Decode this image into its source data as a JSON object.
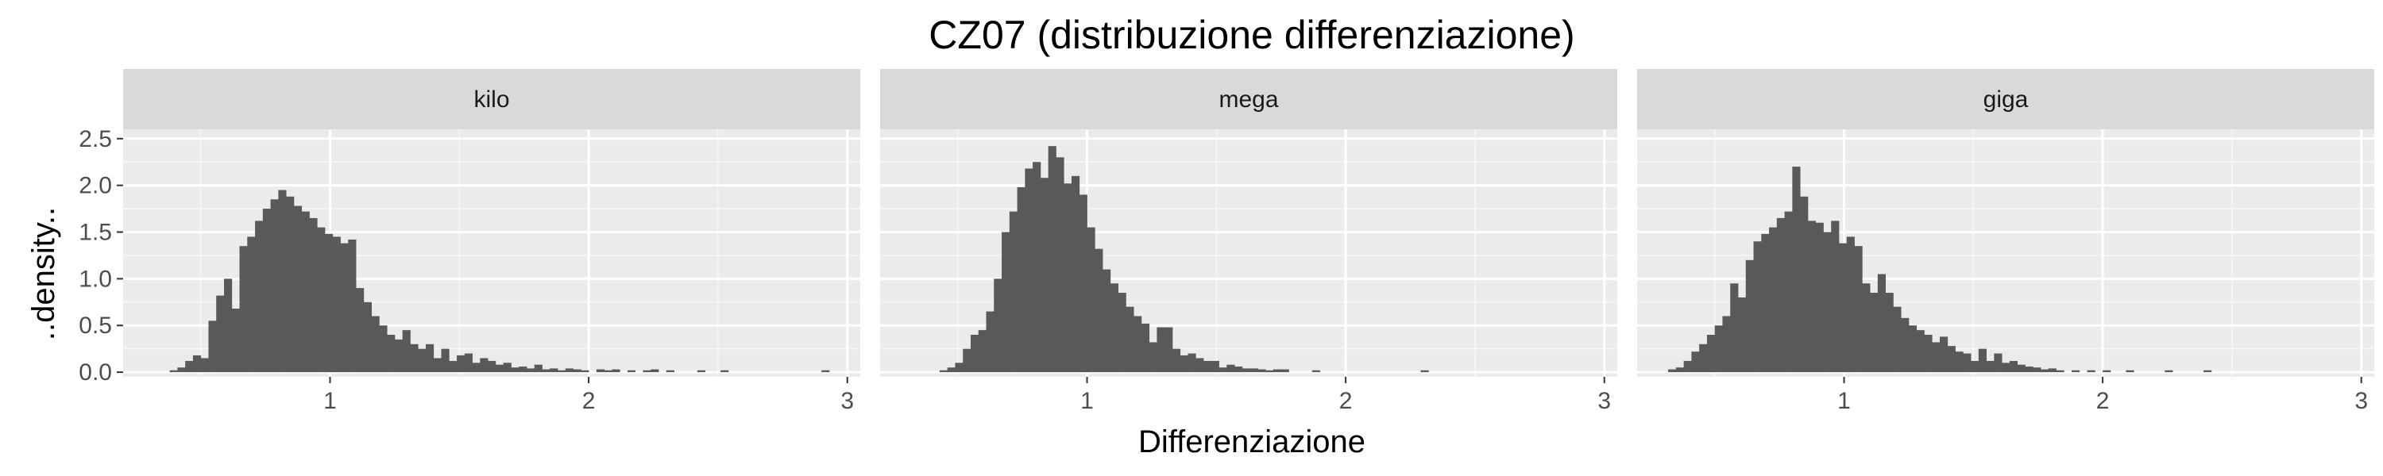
{
  "chart_data": {
    "type": "bar",
    "title": "CZ07 (distribuzione differenziazione)",
    "xlabel": "Differenziazione",
    "ylabel": "..density..",
    "xlim": [
      0.2,
      3.05
    ],
    "ylim": [
      -0.05,
      2.6
    ],
    "x_ticks": [
      1,
      2,
      3
    ],
    "y_ticks": [
      0.0,
      0.5,
      1.0,
      1.5,
      2.0,
      2.5
    ],
    "x_tick_labels": [
      "1",
      "2",
      "3"
    ],
    "y_tick_labels": [
      "0.0",
      "0.5",
      "1.0",
      "1.5",
      "2.0",
      "2.5"
    ],
    "grid": true,
    "bar_color": "#595959",
    "panel_background": "#ebebeb",
    "strip_background": "#d9d9d9",
    "bin_width": 0.03,
    "panels": [
      {
        "name": "kilo",
        "bin_starts": [
          0.38,
          0.41,
          0.44,
          0.47,
          0.5,
          0.53,
          0.56,
          0.59,
          0.62,
          0.65,
          0.68,
          0.71,
          0.74,
          0.77,
          0.8,
          0.83,
          0.86,
          0.89,
          0.92,
          0.95,
          0.98,
          1.01,
          1.04,
          1.07,
          1.1,
          1.13,
          1.16,
          1.19,
          1.22,
          1.25,
          1.28,
          1.31,
          1.34,
          1.37,
          1.4,
          1.43,
          1.46,
          1.49,
          1.52,
          1.55,
          1.58,
          1.61,
          1.64,
          1.67,
          1.7,
          1.73,
          1.76,
          1.79,
          1.82,
          1.85,
          1.88,
          1.91,
          1.94,
          1.97,
          2.0,
          2.03,
          2.06,
          2.09,
          2.12,
          2.15,
          2.18,
          2.21,
          2.24,
          2.27,
          2.3,
          2.33,
          2.36,
          2.39,
          2.42,
          2.45,
          2.48,
          2.51,
          2.54,
          2.57,
          2.6,
          2.63,
          2.66,
          2.69,
          2.72,
          2.75,
          2.78,
          2.81,
          2.84,
          2.87,
          2.9
        ],
        "values": [
          0.02,
          0.05,
          0.12,
          0.18,
          0.15,
          0.55,
          0.82,
          1.0,
          0.68,
          1.35,
          1.45,
          1.62,
          1.75,
          1.85,
          1.95,
          1.88,
          1.78,
          1.72,
          1.65,
          1.55,
          1.48,
          1.45,
          1.38,
          1.42,
          0.9,
          0.75,
          0.6,
          0.5,
          0.4,
          0.35,
          0.45,
          0.3,
          0.25,
          0.3,
          0.15,
          0.25,
          0.12,
          0.18,
          0.2,
          0.1,
          0.15,
          0.12,
          0.08,
          0.1,
          0.05,
          0.06,
          0.04,
          0.08,
          0.03,
          0.04,
          0.02,
          0.04,
          0.03,
          0.02,
          0.0,
          0.03,
          0.02,
          0.03,
          0.0,
          0.02,
          0.0,
          0.02,
          0.03,
          0.0,
          0.02,
          0.0,
          0.0,
          0.0,
          0.02,
          0.0,
          0.0,
          0.02,
          0.0,
          0.0,
          0.0,
          0.0,
          0.0,
          0.0,
          0.0,
          0.0,
          0.0,
          0.0,
          0.0,
          0.0,
          0.02
        ]
      },
      {
        "name": "mega",
        "bin_starts": [
          0.43,
          0.46,
          0.49,
          0.52,
          0.55,
          0.58,
          0.61,
          0.64,
          0.67,
          0.7,
          0.73,
          0.76,
          0.79,
          0.82,
          0.85,
          0.88,
          0.91,
          0.94,
          0.97,
          1.0,
          1.03,
          1.06,
          1.09,
          1.12,
          1.15,
          1.18,
          1.21,
          1.24,
          1.27,
          1.3,
          1.33,
          1.36,
          1.39,
          1.42,
          1.45,
          1.48,
          1.51,
          1.54,
          1.57,
          1.6,
          1.63,
          1.66,
          1.69,
          1.72,
          1.75,
          1.78,
          1.81,
          1.84,
          1.87,
          1.9,
          1.93,
          1.96,
          1.99,
          2.02,
          2.05,
          2.08,
          2.11,
          2.14,
          2.17,
          2.2,
          2.23,
          2.26,
          2.29
        ],
        "values": [
          0.02,
          0.05,
          0.1,
          0.25,
          0.4,
          0.45,
          0.65,
          1.0,
          1.5,
          1.72,
          1.98,
          2.18,
          2.25,
          2.08,
          2.42,
          2.3,
          2.02,
          2.1,
          1.9,
          1.55,
          1.32,
          1.1,
          0.95,
          0.85,
          0.7,
          0.6,
          0.52,
          0.32,
          0.48,
          0.48,
          0.25,
          0.18,
          0.2,
          0.15,
          0.12,
          0.12,
          0.05,
          0.08,
          0.06,
          0.04,
          0.04,
          0.03,
          0.02,
          0.03,
          0.03,
          0.0,
          0.0,
          0.0,
          0.02,
          0.0,
          0.0,
          0.0,
          0.0,
          0.0,
          0.0,
          0.0,
          0.0,
          0.0,
          0.0,
          0.0,
          0.0,
          0.0,
          0.02
        ]
      },
      {
        "name": "giga",
        "bin_starts": [
          0.32,
          0.35,
          0.38,
          0.41,
          0.44,
          0.47,
          0.5,
          0.53,
          0.56,
          0.59,
          0.62,
          0.65,
          0.68,
          0.71,
          0.74,
          0.77,
          0.8,
          0.83,
          0.86,
          0.89,
          0.92,
          0.95,
          0.98,
          1.01,
          1.04,
          1.07,
          1.1,
          1.13,
          1.16,
          1.19,
          1.22,
          1.25,
          1.28,
          1.31,
          1.34,
          1.37,
          1.4,
          1.43,
          1.46,
          1.49,
          1.52,
          1.55,
          1.58,
          1.61,
          1.64,
          1.67,
          1.7,
          1.73,
          1.76,
          1.79,
          1.82,
          1.85,
          1.88,
          1.91,
          1.94,
          1.97,
          2.0,
          2.03,
          2.06,
          2.09,
          2.12,
          2.15,
          2.18,
          2.21,
          2.24,
          2.27,
          2.3,
          2.33,
          2.36,
          2.39
        ],
        "values": [
          0.03,
          0.05,
          0.12,
          0.22,
          0.3,
          0.4,
          0.5,
          0.6,
          0.95,
          0.8,
          1.2,
          1.4,
          1.48,
          1.55,
          1.65,
          1.72,
          2.2,
          1.88,
          1.62,
          1.6,
          1.5,
          1.62,
          1.38,
          1.45,
          1.35,
          0.95,
          0.85,
          1.05,
          0.85,
          0.7,
          0.58,
          0.5,
          0.45,
          0.4,
          0.32,
          0.38,
          0.28,
          0.22,
          0.2,
          0.12,
          0.25,
          0.12,
          0.2,
          0.1,
          0.12,
          0.08,
          0.06,
          0.05,
          0.03,
          0.04,
          0.02,
          0.0,
          0.02,
          0.0,
          0.02,
          0.0,
          0.02,
          0.0,
          0.0,
          0.02,
          0.0,
          0.0,
          0.0,
          0.0,
          0.02,
          0.0,
          0.0,
          0.0,
          0.0,
          0.02
        ]
      }
    ]
  }
}
